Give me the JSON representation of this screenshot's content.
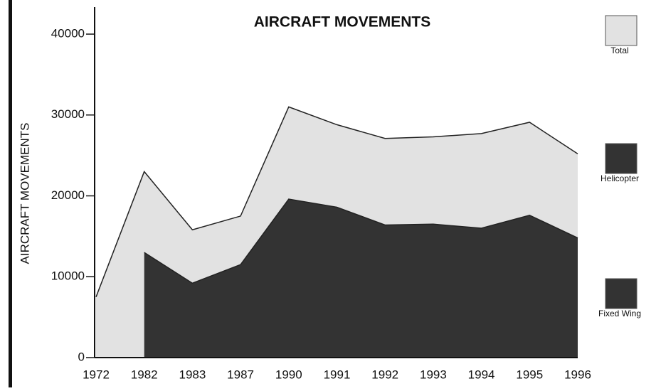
{
  "chart_data": {
    "type": "area",
    "title": "AIRCRAFT MOVEMENTS",
    "y_label": "AIRCRAFT MOVEMENTS",
    "categories": [
      "1972",
      "1982",
      "1983",
      "1987",
      "1990",
      "1991",
      "1992",
      "1993",
      "1994",
      "1995",
      "1996"
    ],
    "series": [
      {
        "name": "Total",
        "color": "#e2e2e2",
        "values": [
          7500,
          23000,
          15800,
          17500,
          31000,
          28800,
          27100,
          27300,
          27700,
          29100,
          25200
        ]
      },
      {
        "name": "Helicopter",
        "color": "#333333",
        "values": [
          null,
          null,
          null,
          null,
          null,
          null,
          null,
          null,
          null,
          null,
          null
        ]
      },
      {
        "name": "Fixed Wing",
        "color": "#333333",
        "values": [
          null,
          13000,
          9200,
          11500,
          19600,
          18600,
          16400,
          16500,
          16000,
          17600,
          14800
        ]
      }
    ],
    "ylim": [
      0,
      40000
    ],
    "yticks": [
      0,
      10000,
      20000,
      30000,
      40000
    ]
  }
}
